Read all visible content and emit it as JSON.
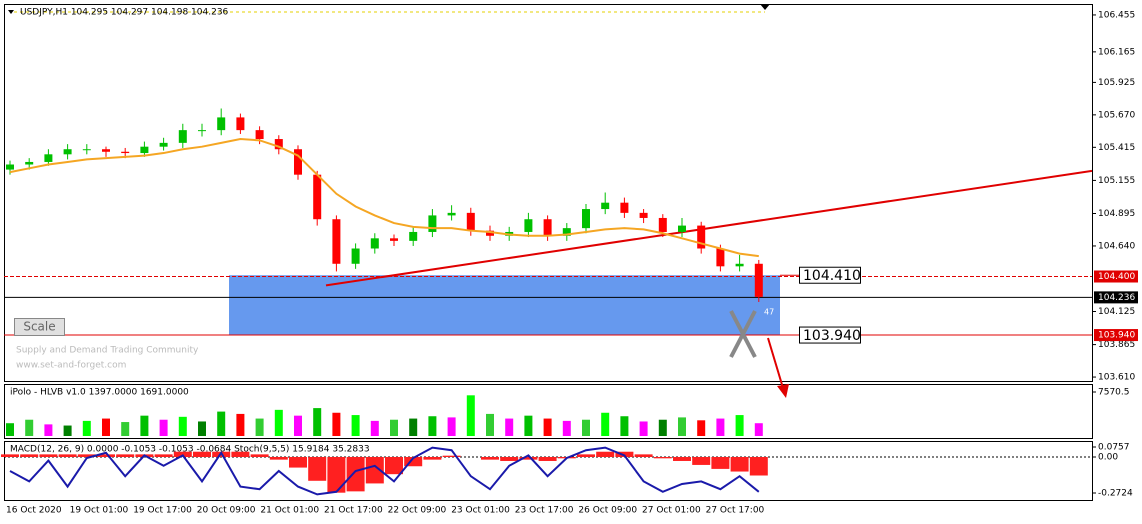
{
  "chart_data": [
    {
      "type": "candlestick",
      "title": "USDJPY,H1  104.295 104.297 104.198 104.236",
      "x_labels": [
        "16 Oct 2020",
        "19 Oct 01:00",
        "19 Oct 17:00",
        "20 Oct 09:00",
        "21 Oct 01:00",
        "21 Oct 17:00",
        "22 Oct 09:00",
        "23 Oct 01:00",
        "23 Oct 17:00",
        "26 Oct 09:00",
        "27 Oct 01:00",
        "27 Oct 17:00"
      ],
      "open": [
        105.24,
        105.28,
        105.3,
        105.36,
        105.4,
        105.4,
        105.38,
        105.37,
        105.42,
        105.45,
        105.55,
        105.55,
        105.65,
        105.55,
        105.48,
        105.4,
        105.2,
        104.85,
        104.5,
        104.62,
        104.7,
        104.68,
        104.75,
        104.88,
        104.9,
        104.76,
        104.72,
        104.75,
        104.85,
        104.72,
        104.78,
        104.93,
        104.98,
        104.9,
        104.86,
        104.75,
        104.8,
        104.62,
        104.48,
        104.5
      ],
      "high": [
        105.31,
        105.33,
        105.4,
        105.44,
        105.44,
        105.42,
        105.41,
        105.46,
        105.49,
        105.6,
        105.6,
        105.72,
        105.68,
        105.58,
        105.51,
        105.43,
        105.23,
        104.88,
        104.66,
        104.74,
        104.73,
        104.79,
        104.93,
        104.96,
        104.94,
        104.8,
        104.79,
        104.9,
        104.88,
        104.82,
        104.97,
        105.06,
        105.02,
        104.93,
        104.89,
        104.86,
        104.83,
        104.65,
        104.57,
        104.53
      ],
      "low": [
        105.2,
        105.24,
        105.27,
        105.32,
        105.36,
        105.34,
        105.33,
        105.34,
        105.39,
        105.41,
        105.5,
        105.51,
        105.52,
        105.44,
        105.36,
        105.16,
        104.8,
        104.44,
        104.46,
        104.58,
        104.64,
        104.64,
        104.71,
        104.84,
        104.72,
        104.68,
        104.68,
        104.71,
        104.68,
        104.68,
        104.74,
        104.89,
        104.86,
        104.82,
        104.71,
        104.71,
        104.58,
        104.44,
        104.44,
        104.2
      ],
      "close": [
        105.28,
        105.3,
        105.36,
        105.4,
        105.4,
        105.38,
        105.37,
        105.42,
        105.45,
        105.55,
        105.55,
        105.65,
        105.55,
        105.48,
        105.4,
        105.2,
        104.85,
        104.5,
        104.62,
        104.7,
        104.68,
        104.75,
        104.88,
        104.9,
        104.76,
        104.72,
        104.75,
        104.85,
        104.72,
        104.78,
        104.93,
        104.98,
        104.9,
        104.86,
        104.75,
        104.8,
        104.62,
        104.48,
        104.5,
        104.24
      ],
      "up_color": "#00c000",
      "down_color": "#ff0000",
      "ma": {
        "color": "#f5a623",
        "values": [
          105.22,
          105.25,
          105.28,
          105.3,
          105.32,
          105.33,
          105.34,
          105.35,
          105.37,
          105.4,
          105.42,
          105.45,
          105.48,
          105.47,
          105.42,
          105.35,
          105.2,
          105.05,
          104.95,
          104.88,
          104.82,
          104.79,
          104.78,
          104.78,
          104.76,
          104.75,
          104.73,
          104.72,
          104.72,
          104.73,
          104.75,
          104.77,
          104.78,
          104.77,
          104.74,
          104.7,
          104.66,
          104.62,
          104.58,
          104.56
        ]
      },
      "trendline": {
        "color": "#e00000",
        "values": [
          104.33,
          105.23
        ]
      },
      "zone": {
        "color": "#6699ee",
        "top": {
          "value": 104.41,
          "label": "104.410"
        },
        "bottom": {
          "value": 103.94,
          "label": "103.940"
        }
      },
      "price_marks": [
        {
          "value": 104.4,
          "label": "104.400",
          "color": "#e00000"
        },
        {
          "value": 104.236,
          "label": "104.236",
          "color": "#000000"
        },
        {
          "value": 103.94,
          "label": "103.940",
          "color": "#e00000"
        }
      ],
      "ylim": [
        103.579,
        106.541
      ],
      "yticks": [
        106.455,
        106.165,
        105.925,
        {
          "value": 105.67,
          "label": "105.670"
        },
        105.415,
        105.155,
        104.895,
        {
          "value": 104.64,
          "label": "104.640"
        },
        104.125,
        103.865,
        {
          "value": 103.61,
          "label": "103.610"
        }
      ],
      "button": "Scale",
      "watermark": [
        "Supply and Demand Trading Community",
        "www.set-and-forget.com"
      ],
      "annotation": "47"
    },
    {
      "type": "bar",
      "title": "iPolo - HLVB v1.0 1397.0000 1691.0000",
      "values": [
        2200,
        2800,
        2000,
        1800,
        2600,
        3000,
        2400,
        3500,
        2800,
        3300,
        2500,
        4200,
        3800,
        3000,
        4500,
        3500,
        4800,
        4000,
        3600,
        2600,
        2800,
        3000,
        3400,
        3200,
        7000,
        3800,
        3000,
        3500,
        3000,
        2600,
        2800,
        4000,
        3400,
        2500,
        2800,
        3200,
        2700,
        3000,
        3600,
        2200
      ],
      "colors": [
        "#00c000",
        "#32cd32",
        "#ff00ff",
        "#008000",
        "#00ff00",
        "#ff0000",
        "#32cd32",
        "#00c000",
        "#ff00ff",
        "#00ff00",
        "#008000",
        "#00c000",
        "#ff0000",
        "#32cd32",
        "#00ff00",
        "#ff00ff",
        "#00c000",
        "#ff0000",
        "#00ff00",
        "#ff00ff",
        "#32cd32",
        "#008000",
        "#00c000",
        "#ff00ff",
        "#00ff00",
        "#32cd32",
        "#ff00ff",
        "#00c000",
        "#ff0000",
        "#ff00ff",
        "#32cd32",
        "#00ff00",
        "#00c000",
        "#ff00ff",
        "#008000",
        "#32cd32",
        "#ff0000",
        "#ff00ff",
        "#00ff00",
        "#ff00ff"
      ],
      "ylim": [
        0,
        7570.5
      ],
      "yticks": [
        7570.5
      ]
    },
    {
      "type": "macd",
      "title": "MACD(12, 26, 9) 0.0000 -0.1053 -0.1053 -0.0684  Stoch(9,5,5) 15.9184 35.2833",
      "histogram": {
        "color": "#ff2020",
        "values": [
          0.02,
          0.02,
          0.02,
          0.02,
          0.02,
          0.02,
          0.02,
          0.02,
          0.02,
          0.04,
          0.04,
          0.04,
          0.04,
          0.02,
          -0.02,
          -0.08,
          -0.18,
          -0.27,
          -0.26,
          -0.2,
          -0.13,
          -0.07,
          -0.02,
          0.01,
          0.0,
          -0.02,
          -0.03,
          -0.02,
          -0.03,
          -0.01,
          0.02,
          0.04,
          0.04,
          0.02,
          -0.01,
          -0.03,
          -0.06,
          -0.09,
          -0.11,
          -0.14
        ]
      },
      "line": {
        "color": "#1a1aaa",
        "axis": "y2",
        "values": [
          50,
          30,
          70,
          20,
          75,
          85,
          40,
          80,
          60,
          80,
          30,
          85,
          20,
          15,
          50,
          20,
          5,
          10,
          50,
          60,
          30,
          75,
          95,
          90,
          40,
          15,
          60,
          80,
          40,
          75,
          90,
          95,
          80,
          30,
          10,
          25,
          30,
          15,
          40,
          10
        ]
      },
      "ylim": [
        -0.2724,
        0.0757
      ],
      "yticks": [
        0.0757,
        {
          "value": 0,
          "label": "0.00"
        },
        -0.2724
      ],
      "y2lim": [
        0,
        100
      ]
    }
  ]
}
